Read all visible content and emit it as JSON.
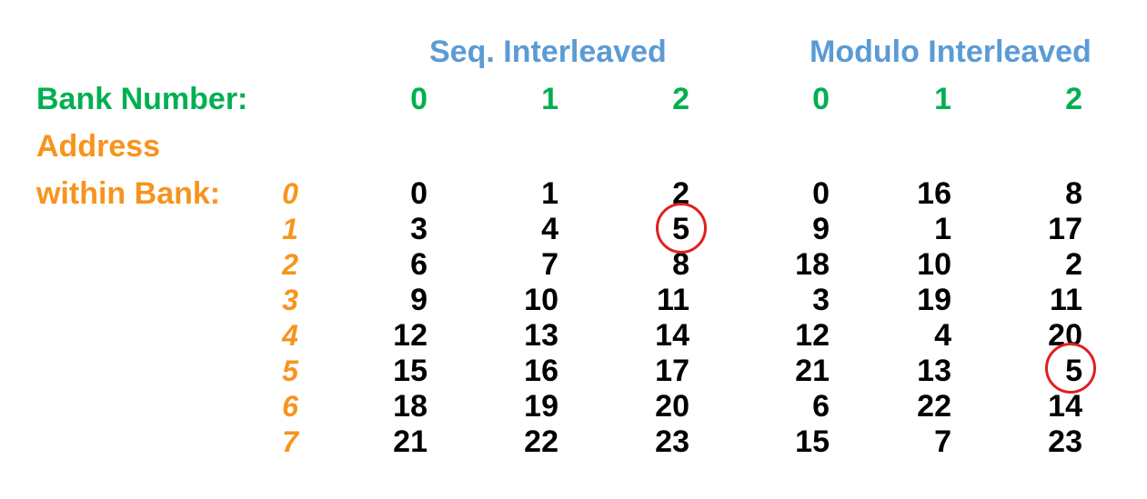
{
  "headings": {
    "seq": "Seq. Interleaved",
    "modulo": "Modulo Interleaved"
  },
  "labels": {
    "bank_number": "Bank Number:",
    "address": "Address",
    "within_bank": "within Bank:"
  },
  "bank_numbers": [
    "0",
    "1",
    "2",
    "0",
    "1",
    "2"
  ],
  "address_rows": [
    "0",
    "1",
    "2",
    "3",
    "4",
    "5",
    "6",
    "7"
  ],
  "seq": [
    [
      "0",
      "1",
      "2"
    ],
    [
      "3",
      "4",
      "5"
    ],
    [
      "6",
      "7",
      "8"
    ],
    [
      "9",
      "10",
      "11"
    ],
    [
      "12",
      "13",
      "14"
    ],
    [
      "15",
      "16",
      "17"
    ],
    [
      "18",
      "19",
      "20"
    ],
    [
      "21",
      "22",
      "23"
    ]
  ],
  "modulo": [
    [
      "0",
      "16",
      "8"
    ],
    [
      "9",
      "1",
      "17"
    ],
    [
      "18",
      "10",
      "2"
    ],
    [
      "3",
      "19",
      "11"
    ],
    [
      "12",
      "4",
      "20"
    ],
    [
      "21",
      "13",
      "5"
    ],
    [
      "6",
      "22",
      "14"
    ],
    [
      "15",
      "7",
      "23"
    ]
  ],
  "highlight_color": "#e02020"
}
